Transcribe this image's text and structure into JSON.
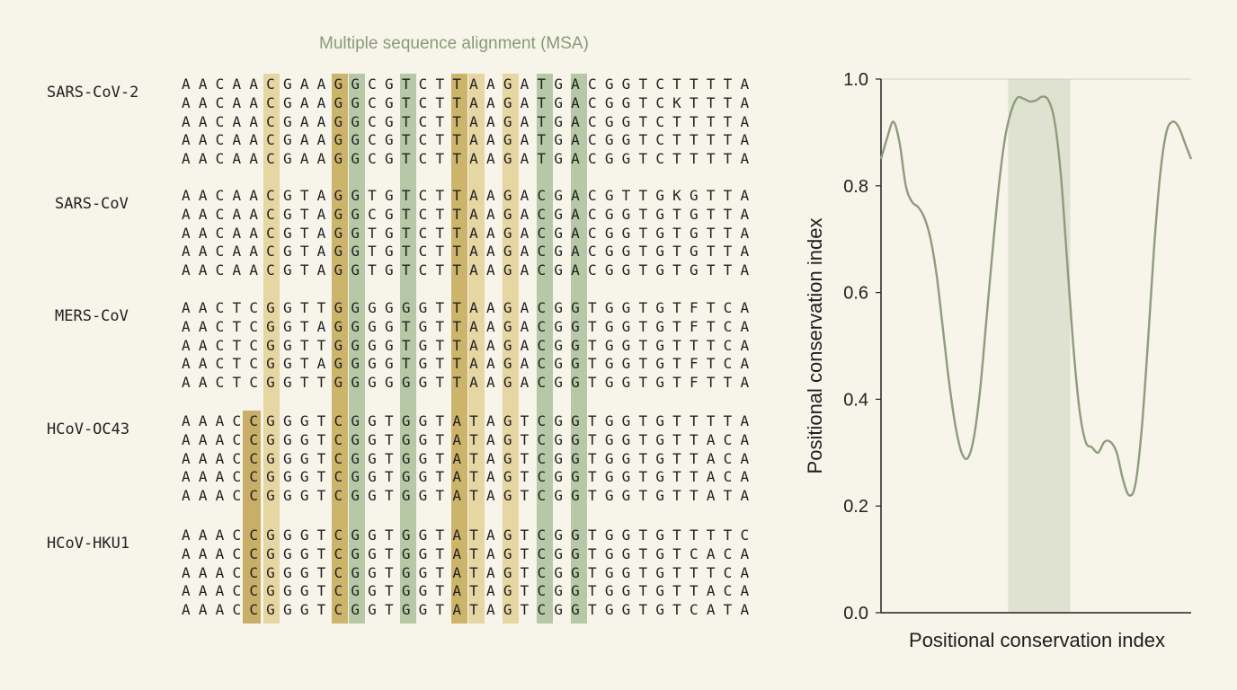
{
  "msa": {
    "title": "Multiple sequence alignment (MSA)",
    "groups": [
      {
        "label": "SARS-CoV-2",
        "sequences": [
          "AACAACGAAGGCGTCTTAAGATGACGGTCTTTTA",
          "AACAACGAAGGCGTCTTAAGATGACGGTCKTTTA",
          "AACAACGAAGGCGTCTTAAGATGACGGTCTTTTA",
          "AACAACGAAGGCGTCTTAAGATGACGGTCTTTTA",
          "AACAACGAAGGCGTCTTAAGATGACGGTCTTTTA"
        ]
      },
      {
        "label": "SARS-CoV",
        "sequences": [
          "AACAACGTAGGTGTCTTAAGACGACGTTGKGTTA",
          "AACAACGTAGGCGTCTTAAGACGACGGTGTGTTA",
          "AACAACGTAGGTGTCTTAAGACGACGGTGTGTTA",
          "AACAACGTAGGTGTCTTAAGACGACGGTGTGTTA",
          "AACAACGTAGGTGTCTTAAGACGACGGTGTGTTA"
        ]
      },
      {
        "label": "MERS-CoV",
        "sequences": [
          "AACTCGGTTGGGGGGTTAAGACGGTGGTGTFTCA",
          "AACTCGGTAGGGGTGTTAAGACGGTGGTGTFTCA",
          "AACTCGGTTGGGGTGTTAAGACGGTGGTGTTTCA",
          "AACTCGGTAGGGGTGTTAAGACGGTGGTGTFTCA",
          "AACTCGGTTGGGGGGTTAAGACGGTGGTGTFTTA"
        ]
      },
      {
        "label": "HCoV-OC43",
        "sequences": [
          "AAACCGGGTCGGTGGTATAGTCGGTGGTGTTTTA",
          "AAACCGGGTCGGTGGTATAGTCGGTGGTGTTACA",
          "AAACCGGGTCGGTGGTATAGTCGGTGGTGTTACA",
          "AAACCGGGTCGGTGGTATAGTCGGTGGTGTTACA",
          "AAACCGGGTCGGTGGTATAGTCGGTGGTGTTATA"
        ]
      },
      {
        "label": "HCoV-HKU1",
        "sequences": [
          "AAACCGGGTCGGTGGTATAGTCGGTGGTGTTTTC",
          "AAACCGGGTCGGTGGTATAGTCGGTGGTGTCACA",
          "AAACCGGGTCGGTGGTATAGTCGGTGGTGTTTCA",
          "AAACCGGGTCGGTGGTATAGTCGGTGGTGTTACA",
          "AAACCGGGTCGGTGGTATAGTCGGTGGTGTCATA"
        ]
      }
    ],
    "highlighted_columns": [
      {
        "column": 5,
        "tone": "tan"
      },
      {
        "column": 9,
        "tone": "olive"
      },
      {
        "column": 10,
        "tone": "green"
      },
      {
        "column": 13,
        "tone": "green"
      },
      {
        "column": 16,
        "tone": "olive"
      },
      {
        "column": 17,
        "tone": "tan"
      },
      {
        "column": 19,
        "tone": "tan"
      },
      {
        "column": 21,
        "tone": "green"
      },
      {
        "column": 23,
        "tone": "green"
      }
    ],
    "colors": {
      "tan": "#e6d6a2",
      "olive": "#cdb46b",
      "green": "#b6c8a6",
      "ochre": "#c9ae67"
    }
  },
  "chart_data": {
    "type": "line",
    "ylabel": "Positional conservation index",
    "xlabel": "Positional conservation index",
    "ylim": [
      0,
      1
    ],
    "yticks": [
      "0.0",
      "0.2",
      "0.4",
      "0.6",
      "0.8",
      "1.0"
    ],
    "xlim": [
      0,
      100
    ],
    "highlight_x_range": [
      41,
      61
    ],
    "line_color": "#8e9c7c",
    "highlight_color": "#dfe2d0",
    "series": [
      {
        "x": [
          0,
          2,
          4,
          6,
          8,
          10,
          12,
          14,
          16,
          18,
          20,
          22,
          24,
          26,
          28,
          30,
          32,
          34,
          36,
          38,
          40,
          42,
          44,
          46,
          48,
          50,
          52,
          54,
          56,
          58,
          60,
          62,
          64,
          66,
          68,
          70,
          72,
          74,
          76,
          78,
          80,
          82,
          84,
          86,
          88,
          90,
          92,
          94,
          96,
          98,
          100
        ],
        "y": [
          0.85,
          0.89,
          0.92,
          0.88,
          0.8,
          0.77,
          0.76,
          0.74,
          0.7,
          0.63,
          0.53,
          0.43,
          0.35,
          0.3,
          0.29,
          0.33,
          0.42,
          0.55,
          0.68,
          0.8,
          0.89,
          0.94,
          0.965,
          0.963,
          0.958,
          0.96,
          0.967,
          0.96,
          0.92,
          0.82,
          0.66,
          0.5,
          0.38,
          0.32,
          0.31,
          0.3,
          0.32,
          0.32,
          0.3,
          0.25,
          0.22,
          0.24,
          0.34,
          0.5,
          0.68,
          0.82,
          0.9,
          0.92,
          0.91,
          0.88,
          0.85
        ]
      }
    ]
  }
}
